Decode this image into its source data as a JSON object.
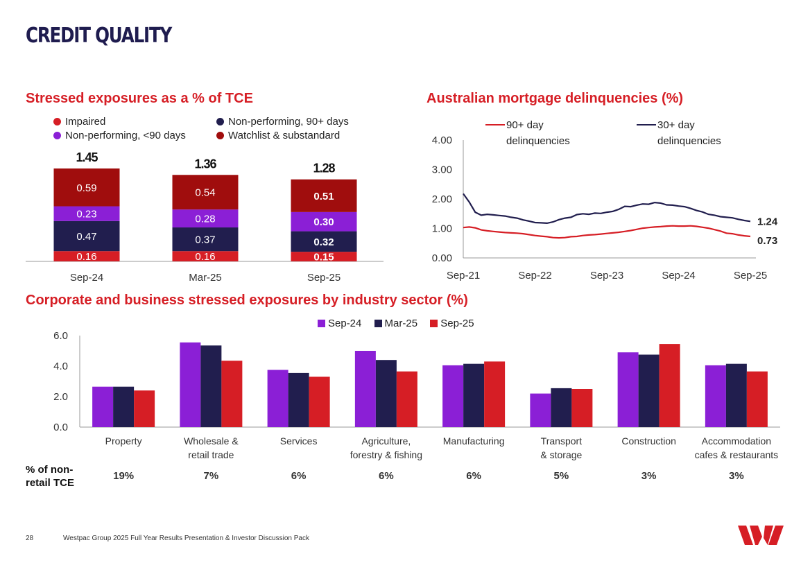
{
  "page": {
    "title": "CREDIT QUALITY",
    "footer_page": "28",
    "footer_text": "Westpac Group 2025 Full Year Results Presentation & Investor Discussion Pack",
    "brand_color": "#d61e25"
  },
  "colors": {
    "impaired": "#d61e25",
    "np90": "#211e4e",
    "np_lt90": "#8b1fd6",
    "watchlist": "#a00d0d",
    "axis": "#999999"
  },
  "chart_data": [
    {
      "type": "bar",
      "stacked": true,
      "title": "Stressed exposures as a % of TCE",
      "categories": [
        "Sep-24",
        "Mar-25",
        "Sep-25"
      ],
      "totals": [
        "1.45",
        "1.36",
        "1.28"
      ],
      "series": [
        {
          "name": "Impaired",
          "values": [
            0.16,
            0.16,
            0.15
          ],
          "labels": [
            "0.16",
            "0.16",
            "0.15"
          ],
          "color": "#d61e25"
        },
        {
          "name": "Non-performing, 90+ days",
          "values": [
            0.47,
            0.37,
            0.32
          ],
          "labels": [
            "0.47",
            "0.37",
            "0.32"
          ],
          "color": "#211e4e"
        },
        {
          "name": "Non-performing, <90 days",
          "values": [
            0.23,
            0.28,
            0.3
          ],
          "labels": [
            "0.23",
            "0.28",
            "0.30"
          ],
          "color": "#8b1fd6"
        },
        {
          "name": "Watchlist & substandard",
          "values": [
            0.59,
            0.54,
            0.51
          ],
          "labels": [
            "0.59",
            "0.54",
            "0.51"
          ],
          "color": "#a00d0d"
        }
      ],
      "legend_order": [
        "Impaired",
        "Non-performing, 90+ days",
        "Non-performing, <90 days",
        "Watchlist & substandard"
      ]
    },
    {
      "type": "line",
      "title": "Australian mortgage delinquencies (%)",
      "ylim": [
        0,
        4
      ],
      "yticks": [
        "0.00",
        "1.00",
        "2.00",
        "3.00",
        "4.00"
      ],
      "xticks": [
        "Sep-21",
        "Sep-22",
        "Sep-23",
        "Sep-24",
        "Sep-25"
      ],
      "x": [
        "Sep-21",
        "Oct-21",
        "Nov-21",
        "Dec-21",
        "Jan-22",
        "Feb-22",
        "Mar-22",
        "Apr-22",
        "May-22",
        "Jun-22",
        "Jul-22",
        "Aug-22",
        "Sep-22",
        "Oct-22",
        "Nov-22",
        "Dec-22",
        "Jan-23",
        "Feb-23",
        "Mar-23",
        "Apr-23",
        "May-23",
        "Jun-23",
        "Jul-23",
        "Aug-23",
        "Sep-23",
        "Oct-23",
        "Nov-23",
        "Dec-23",
        "Jan-24",
        "Feb-24",
        "Mar-24",
        "Apr-24",
        "May-24",
        "Jun-24",
        "Jul-24",
        "Aug-24",
        "Sep-24",
        "Oct-24",
        "Nov-24",
        "Dec-24",
        "Jan-25",
        "Feb-25",
        "Mar-25",
        "Apr-25",
        "May-25",
        "Jun-25",
        "Jul-25",
        "Aug-25",
        "Sep-25"
      ],
      "series": [
        {
          "name": "90+ day delinquencies",
          "legend_line1": "90+ day",
          "legend_line2": "delinquencies",
          "color": "#d61e25",
          "end_label": "0.73",
          "values": [
            1.03,
            1.05,
            1.02,
            0.95,
            0.92,
            0.9,
            0.88,
            0.86,
            0.85,
            0.84,
            0.82,
            0.79,
            0.76,
            0.74,
            0.72,
            0.69,
            0.68,
            0.69,
            0.72,
            0.73,
            0.76,
            0.78,
            0.79,
            0.81,
            0.83,
            0.85,
            0.87,
            0.9,
            0.93,
            0.97,
            1.01,
            1.03,
            1.05,
            1.06,
            1.08,
            1.09,
            1.08,
            1.08,
            1.09,
            1.07,
            1.04,
            1.01,
            0.96,
            0.91,
            0.84,
            0.82,
            0.78,
            0.75,
            0.73
          ]
        },
        {
          "name": "30+ day delinquencies",
          "legend_line1": "30+ day",
          "legend_line2": "delinquencies",
          "color": "#211e4e",
          "end_label": "1.24",
          "values": [
            2.18,
            1.9,
            1.55,
            1.45,
            1.48,
            1.46,
            1.44,
            1.42,
            1.38,
            1.35,
            1.29,
            1.25,
            1.2,
            1.19,
            1.18,
            1.22,
            1.3,
            1.35,
            1.38,
            1.47,
            1.5,
            1.48,
            1.52,
            1.51,
            1.55,
            1.58,
            1.65,
            1.75,
            1.74,
            1.79,
            1.83,
            1.82,
            1.88,
            1.86,
            1.8,
            1.79,
            1.76,
            1.74,
            1.68,
            1.61,
            1.56,
            1.48,
            1.45,
            1.4,
            1.38,
            1.36,
            1.31,
            1.27,
            1.24
          ]
        }
      ]
    },
    {
      "type": "bar",
      "title": "Corporate and business stressed exposures by industry sector (%)",
      "ylim": [
        0,
        6
      ],
      "yticks": [
        "0.0",
        "2.0",
        "4.0",
        "6.0"
      ],
      "categories": [
        {
          "line1": "Property",
          "line2": ""
        },
        {
          "line1": "Wholesale &",
          "line2": "retail trade"
        },
        {
          "line1": "Services",
          "line2": ""
        },
        {
          "line1": "Agriculture,",
          "line2": "forestry & fishing"
        },
        {
          "line1": "Manufacturing",
          "line2": ""
        },
        {
          "line1": "Transport",
          "line2": "& storage"
        },
        {
          "line1": "Construction",
          "line2": ""
        },
        {
          "line1": "Accommodation",
          "line2": "cafes & restaurants"
        }
      ],
      "series": [
        {
          "name": "Sep-24",
          "color": "#8b1fd6",
          "values": [
            2.65,
            5.55,
            3.75,
            5.0,
            4.05,
            2.2,
            4.9,
            4.05
          ]
        },
        {
          "name": "Mar-25",
          "color": "#211e4e",
          "values": [
            2.65,
            5.35,
            3.55,
            4.4,
            4.15,
            2.55,
            4.75,
            4.15
          ]
        },
        {
          "name": "Sep-25",
          "color": "#d61e25",
          "values": [
            2.4,
            4.35,
            3.3,
            3.65,
            4.3,
            2.5,
            5.45,
            3.65
          ]
        }
      ],
      "tce_label_line1": "% of non-",
      "tce_label_line2": "retail TCE",
      "tce_shares": [
        "19%",
        "7%",
        "6%",
        "6%",
        "6%",
        "5%",
        "3%",
        "3%"
      ]
    }
  ]
}
